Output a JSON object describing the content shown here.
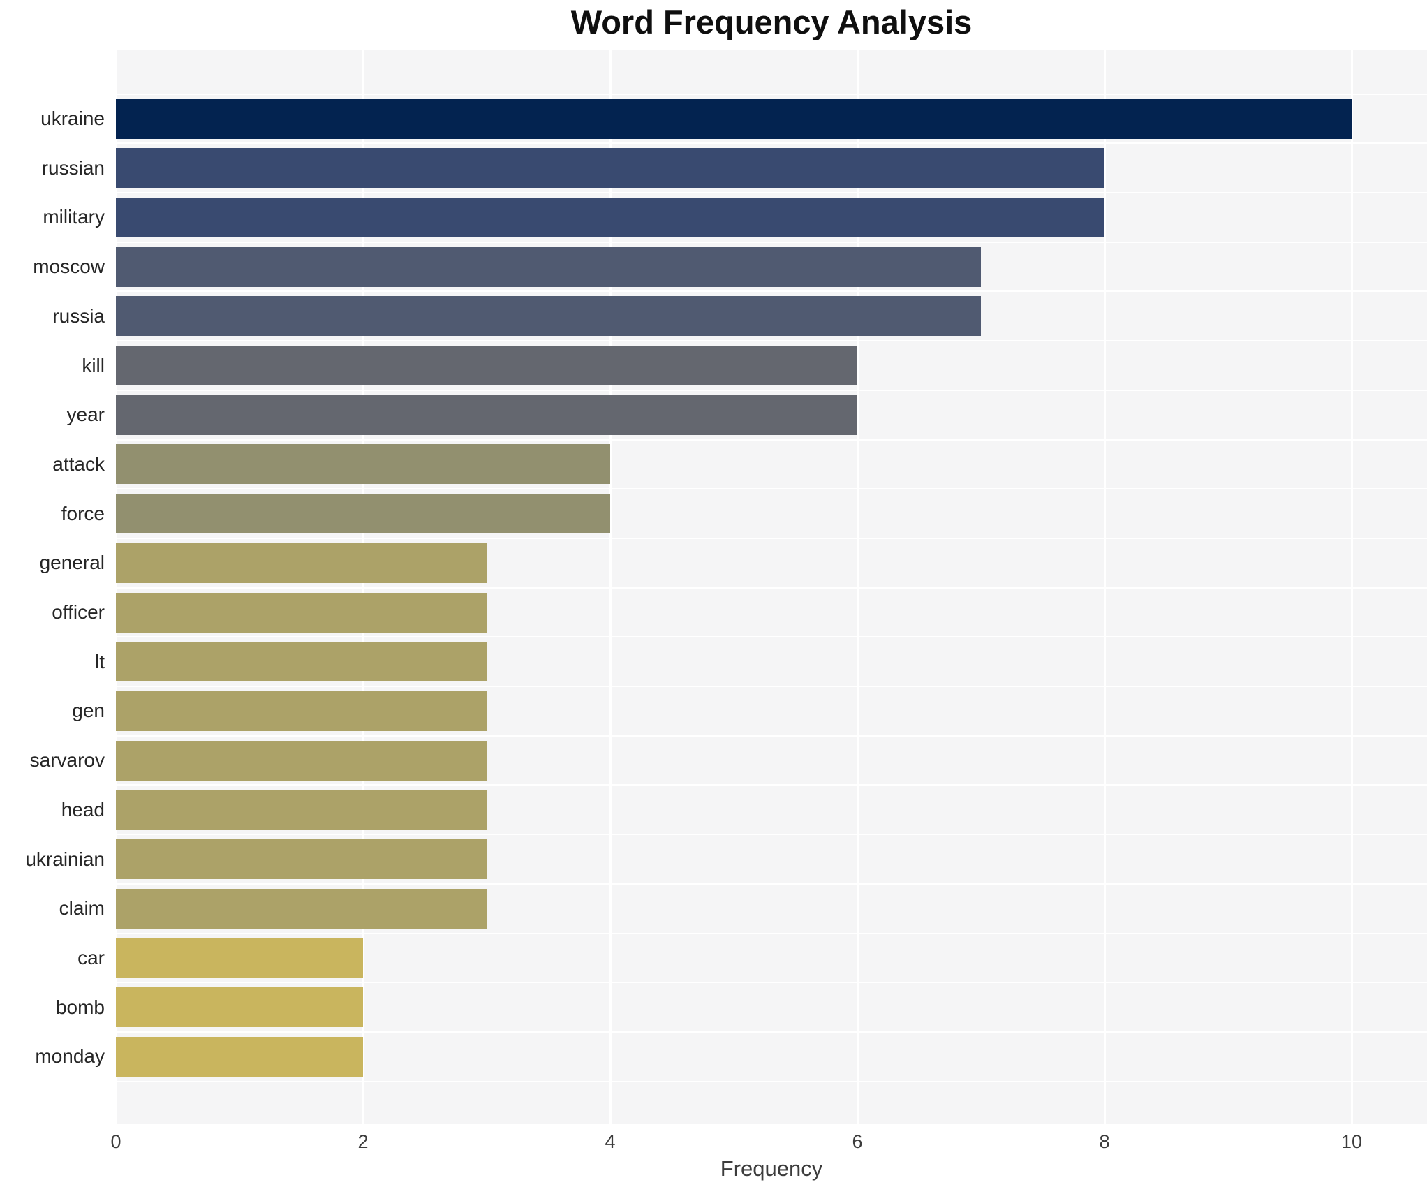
{
  "title": "Word Frequency Analysis",
  "xaxis": {
    "label": "Frequency"
  },
  "colors": {
    "plot_background": "#f5f5f6",
    "grid": "#ffffff",
    "title_text": "#0f0f0f",
    "tick_text": "#3c3c3c",
    "category_text": "#262626"
  },
  "chart_data": {
    "type": "bar",
    "orientation": "horizontal",
    "title": "Word Frequency Analysis",
    "xlabel": "Frequency",
    "ylabel": "",
    "categories": [
      "ukraine",
      "russian",
      "military",
      "moscow",
      "russia",
      "kill",
      "year",
      "attack",
      "force",
      "general",
      "officer",
      "lt",
      "gen",
      "sarvarov",
      "head",
      "ukrainian",
      "claim",
      "car",
      "bomb",
      "monday"
    ],
    "values": [
      10,
      8,
      8,
      7,
      7,
      6,
      6,
      4,
      4,
      3,
      3,
      3,
      3,
      3,
      3,
      3,
      3,
      2,
      2,
      2
    ],
    "bar_colors": [
      "#032350",
      "#394a70",
      "#394a70",
      "#505a71",
      "#505a71",
      "#64676f",
      "#64676f",
      "#92906f",
      "#92906f",
      "#aca268",
      "#aca268",
      "#aca268",
      "#aca268",
      "#aca268",
      "#aca268",
      "#aca268",
      "#aca268",
      "#c9b55e",
      "#c9b55e",
      "#c9b55e"
    ],
    "xticks": [
      0,
      2,
      4,
      6,
      8,
      10
    ],
    "xlim": [
      0,
      10.61
    ],
    "grid": true,
    "legend": null
  }
}
